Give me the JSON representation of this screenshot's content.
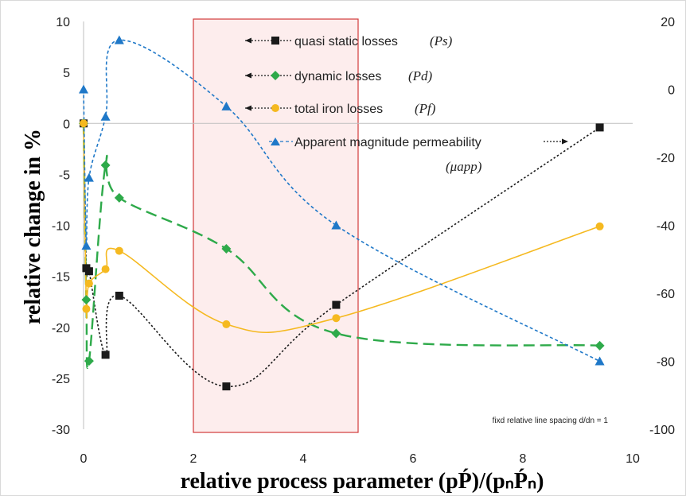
{
  "chart_data": {
    "type": "line",
    "xlabel": "relative process parameter (pṔ)/(pₙṔₙ)",
    "ylabel": "relative change in %",
    "xlim": [
      0,
      10
    ],
    "ylim": [
      -30,
      10
    ],
    "y2lim": [
      -100,
      20
    ],
    "x_ticks": [
      "0",
      "2",
      "4",
      "6",
      "8",
      "10"
    ],
    "y_ticks": [
      "10",
      "5",
      "0",
      "-5",
      "-10",
      "-15",
      "-20",
      "-25",
      "-30"
    ],
    "y2_ticks": [
      "20",
      "0",
      "-20",
      "-40",
      "-60",
      "-80",
      "-100"
    ],
    "grid": false,
    "legend_position": "inside-top-center",
    "note": "fixd relative line spacing d/dn = 1",
    "highlight_region": {
      "x": [
        2,
        5
      ]
    },
    "series": [
      {
        "name": "quasi static losses",
        "symbol": "(Ps)",
        "axis": "left",
        "color": "#1a1a1a",
        "marker": "square",
        "line": "dotted",
        "x": [
          0,
          0.05,
          0.1,
          0.4,
          0.65,
          2.6,
          4.6,
          9.4
        ],
        "y": [
          0,
          -14.2,
          -14.5,
          -22.7,
          -16.9,
          -25.8,
          -17.8,
          -0.4
        ]
      },
      {
        "name": "dynamic losses",
        "symbol": "(Pd)",
        "axis": "left",
        "color": "#2eaa4a",
        "marker": "diamond",
        "line": "long-dash",
        "x": [
          0,
          0.05,
          0.1,
          0.4,
          0.65,
          2.6,
          4.6,
          9.4
        ],
        "y": [
          0,
          -17.3,
          -23.3,
          -4.1,
          -7.3,
          -12.3,
          -20.6,
          -21.8
        ]
      },
      {
        "name": "total iron losses",
        "symbol": "(Pf)",
        "axis": "left",
        "color": "#f5b920",
        "marker": "circle",
        "line": "solid",
        "x": [
          0,
          0.05,
          0.1,
          0.4,
          0.65,
          2.6,
          4.6,
          9.4
        ],
        "y": [
          0,
          -18.2,
          -15.7,
          -14.3,
          -12.5,
          -19.7,
          -19.1,
          -10.1
        ]
      },
      {
        "name": "Apparent magnitude permeability",
        "symbol": "(μapp)",
        "axis": "right",
        "color": "#1f78c8",
        "marker": "triangle",
        "line": "dashed",
        "x": [
          0,
          0.05,
          0.1,
          0.4,
          0.65,
          2.6,
          4.6,
          9.4
        ],
        "y": [
          0,
          -46,
          -26,
          -8,
          14.5,
          -5,
          -40,
          -80
        ]
      }
    ]
  }
}
